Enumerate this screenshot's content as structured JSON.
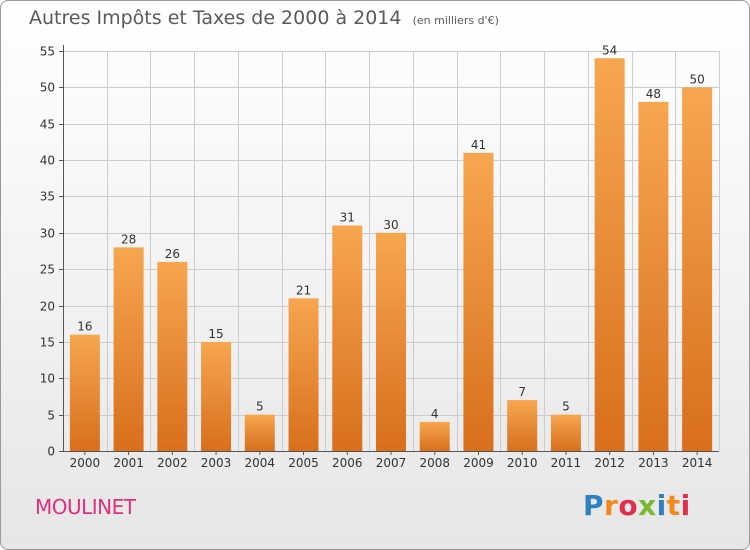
{
  "title": "Autres Impôts et Taxes de 2000 à 2014",
  "unit_note": "(en milliers d'€)",
  "commune": "MOULINET",
  "brand": {
    "text": "Proxiti",
    "letter_colors": [
      "#2f7fc1",
      "#f08a1c",
      "#e02f4a",
      "#7ab82e",
      "#2f7fc1",
      "#f08a1c",
      "#e02f4a"
    ]
  },
  "colors": {
    "bar_top": "#f7a650",
    "bar_bottom": "#d86f1c",
    "grid": "#cccccc",
    "axis_text": "#333333"
  },
  "chart_data": {
    "type": "bar",
    "categories": [
      "2000",
      "2001",
      "2002",
      "2003",
      "2004",
      "2005",
      "2006",
      "2007",
      "2008",
      "2009",
      "2010",
      "2011",
      "2012",
      "2013",
      "2014"
    ],
    "values": [
      16,
      28,
      26,
      15,
      5,
      21,
      31,
      30,
      4,
      41,
      7,
      5,
      54,
      48,
      50
    ],
    "data_labels": [
      "16",
      "28",
      "26",
      "15",
      "5",
      "21",
      "31",
      "30",
      "4",
      "41",
      "7",
      "5",
      "54",
      "48",
      "50"
    ],
    "ylim": [
      0,
      55
    ],
    "yticks": [
      0,
      5,
      10,
      15,
      20,
      25,
      30,
      35,
      40,
      45,
      50,
      55
    ],
    "title": "Autres Impôts et Taxes de 2000 à 2014",
    "xlabel": "",
    "ylabel": "",
    "grid": true,
    "legend": "none"
  }
}
